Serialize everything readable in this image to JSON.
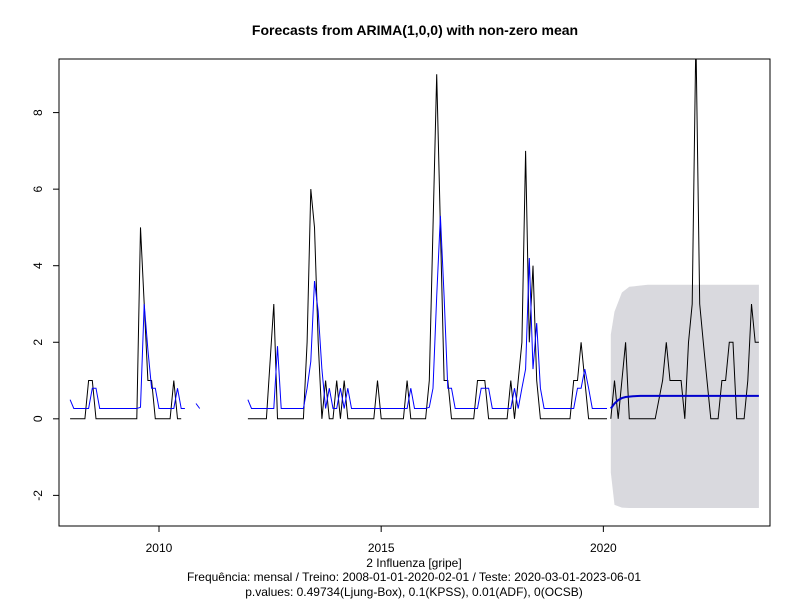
{
  "chart_data": {
    "type": "line",
    "title": "Forecasts from ARIMA(1,0,0) with non-zero mean",
    "xlabel": "2 Influenza [gripe]",
    "subtitle_lines": [
      "Frequência: mensal / Treino: 2008-01-01-2020-02-01 / Teste: 2020-03-01-2023-06-01",
      "p.values: 0.49734(Ljung-Box), 0.1(KPSS), 0.01(ADF), 0(OCSB)"
    ],
    "x_ticks": [
      2010,
      2015,
      2020
    ],
    "y_ticks": [
      -2,
      0,
      2,
      4,
      6,
      8
    ],
    "xlim": [
      2007.75,
      2023.75
    ],
    "ylim": [
      -2.8,
      9.4
    ],
    "grid": false,
    "colors": {
      "observed": "#000000",
      "fitted": "#0000ff",
      "forecast": "#0000cd",
      "interval": "#d9d9de"
    },
    "series": [
      {
        "key": "observed",
        "points": [
          [
            2008.0,
            0
          ],
          [
            2008.333,
            0
          ],
          [
            2008.417,
            1
          ],
          [
            2008.5,
            1
          ],
          [
            2008.583,
            0
          ],
          [
            2008.667,
            0
          ],
          [
            2009.0,
            0
          ],
          [
            2009.333,
            0
          ],
          [
            2009.5,
            0
          ],
          [
            2009.583,
            5
          ],
          [
            2009.667,
            3
          ],
          [
            2009.75,
            1
          ],
          [
            2009.833,
            1
          ],
          [
            2009.917,
            0
          ],
          [
            2010.0,
            0
          ],
          [
            2010.25,
            0
          ],
          [
            2010.333,
            1
          ],
          [
            2010.417,
            0
          ],
          [
            2010.5,
            0
          ],
          [
            2010.917,
            null
          ],
          [
            2012.0,
            0
          ],
          [
            2012.417,
            0
          ],
          [
            2012.583,
            3
          ],
          [
            2012.667,
            0
          ],
          [
            2013.0,
            0
          ],
          [
            2013.25,
            0
          ],
          [
            2013.333,
            2
          ],
          [
            2013.417,
            6
          ],
          [
            2013.5,
            5
          ],
          [
            2013.583,
            2
          ],
          [
            2013.667,
            0
          ],
          [
            2013.75,
            1
          ],
          [
            2013.833,
            0
          ],
          [
            2013.917,
            0
          ],
          [
            2014.0,
            1
          ],
          [
            2014.083,
            0
          ],
          [
            2014.167,
            1
          ],
          [
            2014.25,
            0
          ],
          [
            2014.333,
            0
          ],
          [
            2014.417,
            0
          ],
          [
            2014.5,
            0
          ],
          [
            2014.583,
            0
          ],
          [
            2014.667,
            0
          ],
          [
            2014.75,
            0
          ],
          [
            2014.833,
            0
          ],
          [
            2014.917,
            1
          ],
          [
            2015.0,
            0
          ],
          [
            2015.083,
            0
          ],
          [
            2015.167,
            0
          ],
          [
            2015.5,
            0
          ],
          [
            2015.583,
            1
          ],
          [
            2015.667,
            0
          ],
          [
            2015.75,
            0
          ],
          [
            2016.0,
            0
          ],
          [
            2016.083,
            1
          ],
          [
            2016.167,
            5
          ],
          [
            2016.25,
            9
          ],
          [
            2016.333,
            5
          ],
          [
            2016.417,
            1
          ],
          [
            2016.5,
            1
          ],
          [
            2016.583,
            0
          ],
          [
            2016.667,
            0
          ],
          [
            2017.0,
            0
          ],
          [
            2017.083,
            0
          ],
          [
            2017.167,
            1
          ],
          [
            2017.25,
            1
          ],
          [
            2017.333,
            1
          ],
          [
            2017.417,
            0
          ],
          [
            2017.5,
            0
          ],
          [
            2017.833,
            0
          ],
          [
            2017.917,
            1
          ],
          [
            2018.0,
            0
          ],
          [
            2018.083,
            1
          ],
          [
            2018.167,
            2
          ],
          [
            2018.25,
            7
          ],
          [
            2018.333,
            2
          ],
          [
            2018.417,
            4
          ],
          [
            2018.5,
            1
          ],
          [
            2018.583,
            0
          ],
          [
            2018.667,
            0
          ],
          [
            2019.0,
            0
          ],
          [
            2019.25,
            0
          ],
          [
            2019.333,
            1
          ],
          [
            2019.417,
            1
          ],
          [
            2019.5,
            2
          ],
          [
            2019.583,
            1
          ],
          [
            2019.667,
            0
          ],
          [
            2019.75,
            0
          ],
          [
            2020.083,
            0
          ],
          [
            2020.167,
            null
          ],
          [
            2020.167,
            0
          ],
          [
            2020.25,
            1
          ],
          [
            2020.333,
            0
          ],
          [
            2020.417,
            1
          ],
          [
            2020.5,
            2
          ],
          [
            2020.583,
            0
          ],
          [
            2020.833,
            0
          ],
          [
            2021.0,
            0
          ],
          [
            2021.167,
            0
          ],
          [
            2021.333,
            1
          ],
          [
            2021.417,
            2
          ],
          [
            2021.5,
            1
          ],
          [
            2021.583,
            1
          ],
          [
            2021.667,
            1
          ],
          [
            2021.75,
            1
          ],
          [
            2021.833,
            0
          ],
          [
            2021.917,
            2
          ],
          [
            2022.0,
            3
          ],
          [
            2022.083,
            10
          ],
          [
            2022.167,
            3
          ],
          [
            2022.25,
            2
          ],
          [
            2022.333,
            1
          ],
          [
            2022.417,
            0
          ],
          [
            2022.5,
            0
          ],
          [
            2022.583,
            0
          ],
          [
            2022.667,
            1
          ],
          [
            2022.75,
            1
          ],
          [
            2022.833,
            2
          ],
          [
            2022.917,
            2
          ],
          [
            2023.0,
            0
          ],
          [
            2023.083,
            0
          ],
          [
            2023.167,
            0
          ],
          [
            2023.25,
            1
          ],
          [
            2023.333,
            3
          ],
          [
            2023.417,
            2
          ],
          [
            2023.5,
            2
          ]
        ]
      },
      {
        "key": "fitted",
        "points": [
          [
            2008.0,
            0.5
          ],
          [
            2008.083,
            0.27
          ],
          [
            2008.417,
            0.27
          ],
          [
            2008.5,
            0.8
          ],
          [
            2008.583,
            0.8
          ],
          [
            2008.667,
            0.27
          ],
          [
            2009.5,
            0.27
          ],
          [
            2009.583,
            0.3
          ],
          [
            2009.667,
            3.0
          ],
          [
            2009.75,
            1.8
          ],
          [
            2009.833,
            0.8
          ],
          [
            2009.917,
            0.8
          ],
          [
            2010.0,
            0.27
          ],
          [
            2010.333,
            0.27
          ],
          [
            2010.417,
            0.8
          ],
          [
            2010.5,
            0.27
          ],
          [
            2010.583,
            0.27
          ],
          [
            2010.667,
            null
          ],
          [
            2010.833,
            0.4
          ],
          [
            2010.917,
            0.27
          ],
          [
            2011.0,
            null
          ],
          [
            2012.0,
            0.5
          ],
          [
            2012.083,
            0.27
          ],
          [
            2012.583,
            0.27
          ],
          [
            2012.667,
            1.9
          ],
          [
            2012.75,
            0.27
          ],
          [
            2013.25,
            0.27
          ],
          [
            2013.333,
            0.8
          ],
          [
            2013.417,
            1.5
          ],
          [
            2013.5,
            3.6
          ],
          [
            2013.583,
            2.8
          ],
          [
            2013.667,
            1.3
          ],
          [
            2013.75,
            0.27
          ],
          [
            2013.833,
            0.8
          ],
          [
            2013.917,
            0.27
          ],
          [
            2014.0,
            0.27
          ],
          [
            2014.083,
            0.8
          ],
          [
            2014.167,
            0.27
          ],
          [
            2014.25,
            0.8
          ],
          [
            2014.333,
            0.27
          ],
          [
            2015.5,
            0.27
          ],
          [
            2015.583,
            0.27
          ],
          [
            2015.667,
            0.8
          ],
          [
            2015.75,
            0.27
          ],
          [
            2016.0,
            0.27
          ],
          [
            2016.083,
            0.3
          ],
          [
            2016.167,
            0.8
          ],
          [
            2016.25,
            3.2
          ],
          [
            2016.333,
            5.3
          ],
          [
            2016.417,
            3.2
          ],
          [
            2016.5,
            0.8
          ],
          [
            2016.583,
            0.8
          ],
          [
            2016.667,
            0.27
          ],
          [
            2017.0,
            0.27
          ],
          [
            2017.167,
            0.27
          ],
          [
            2017.25,
            0.8
          ],
          [
            2017.333,
            0.8
          ],
          [
            2017.417,
            0.8
          ],
          [
            2017.5,
            0.27
          ],
          [
            2017.917,
            0.27
          ],
          [
            2018.0,
            0.8
          ],
          [
            2018.083,
            0.27
          ],
          [
            2018.167,
            0.8
          ],
          [
            2018.25,
            1.3
          ],
          [
            2018.333,
            4.2
          ],
          [
            2018.417,
            1.3
          ],
          [
            2018.5,
            2.5
          ],
          [
            2018.583,
            0.8
          ],
          [
            2018.667,
            0.27
          ],
          [
            2019.333,
            0.27
          ],
          [
            2019.417,
            0.8
          ],
          [
            2019.5,
            0.8
          ],
          [
            2019.583,
            1.3
          ],
          [
            2019.667,
            0.8
          ],
          [
            2019.75,
            0.27
          ],
          [
            2020.083,
            0.27
          ]
        ]
      }
    ],
    "forecast": {
      "points": [
        [
          2020.167,
          0.27
        ],
        [
          2020.25,
          0.4
        ],
        [
          2020.333,
          0.49
        ],
        [
          2020.417,
          0.54
        ],
        [
          2020.5,
          0.57
        ],
        [
          2020.667,
          0.59
        ],
        [
          2020.833,
          0.6
        ],
        [
          2021.0,
          0.6
        ],
        [
          2022.0,
          0.6
        ],
        [
          2023.0,
          0.6
        ],
        [
          2023.5,
          0.6
        ]
      ],
      "interval": {
        "x": [
          2020.167,
          2020.25,
          2020.417,
          2020.583,
          2021.0,
          2023.5
        ],
        "lower": [
          -1.4,
          -2.25,
          -2.32,
          -2.33,
          -2.33,
          -2.33
        ],
        "upper": [
          2.2,
          2.8,
          3.3,
          3.45,
          3.5,
          3.5
        ]
      }
    }
  }
}
